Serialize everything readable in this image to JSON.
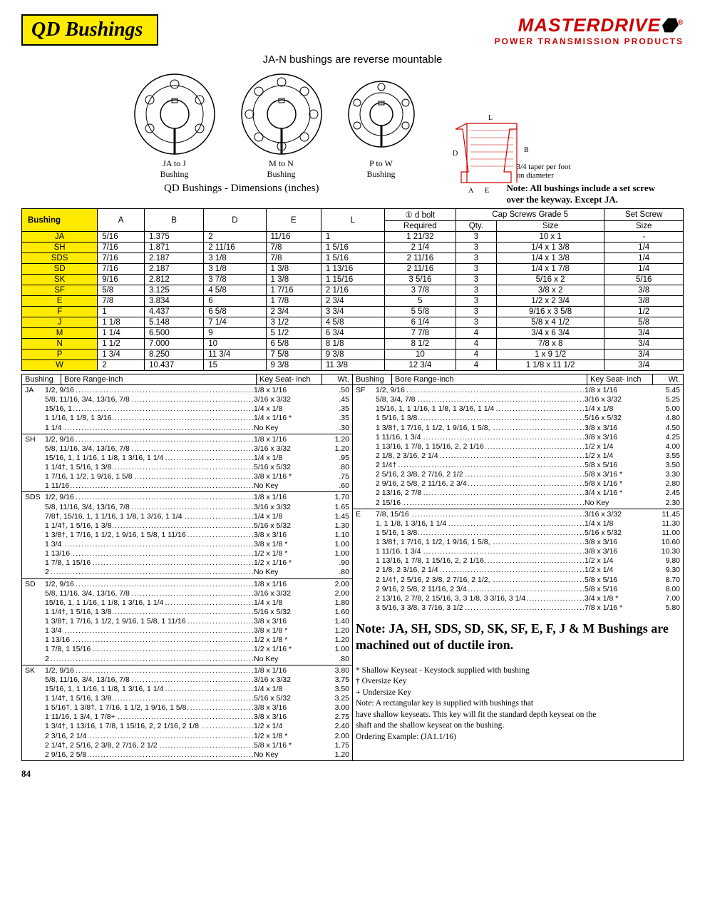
{
  "header": {
    "title": "QD Bushings",
    "brand": "MASTERDRIVE",
    "brand_sub": "POWER TRANSMISSION PRODUCTS"
  },
  "subtitle": "JA-N bushings are reverse mountable",
  "diagram_labels": {
    "a": "JA to J",
    "a2": "Bushing",
    "b": "M to N",
    "b2": "Bushing",
    "c": "P to W",
    "c2": "Bushing",
    "taper": "3/4 taper per foot\non diameter"
  },
  "dim_caption": "QD Bushings - Dimensions (inches)",
  "key_note": "Note: All bushings include a set screw\nover the keyway.  Except JA.",
  "main_table": {
    "header": {
      "bushing": "Bushing",
      "A": "A",
      "B": "B",
      "D": "D",
      "E": "E",
      "L": "L",
      "bolt": "① d bolt",
      "required": "Required",
      "caps": "Cap Screws Grade 5",
      "qty": "Qty.",
      "size": "Size",
      "set": "Set Screw",
      "ssize": "Size"
    },
    "rows": [
      {
        "b": "JA",
        "A": "5/16",
        "B": "1.375",
        "D": "2",
        "E": "11/16",
        "L": "1",
        "R": "1 21/32",
        "Q": "3",
        "S": "10 x 1",
        "SS": "-"
      },
      {
        "b": "SH",
        "A": "7/16",
        "B": "1.871",
        "D": "2 11/16",
        "E": "7/8",
        "L": "1 5/16",
        "R": "2 1/4",
        "Q": "3",
        "S": "1/4 x 1 3/8",
        "SS": "1/4"
      },
      {
        "b": "SDS",
        "A": "7/16",
        "B": "2.187",
        "D": "3 1/8",
        "E": "7/8",
        "L": "1 5/16",
        "R": "2 11/16",
        "Q": "3",
        "S": "1/4 x 1 3/8",
        "SS": "1/4"
      },
      {
        "b": "SD",
        "A": "7/16",
        "B": "2.187",
        "D": "3 1/8",
        "E": "1 3/8",
        "L": "1 13/16",
        "R": "2 11/16",
        "Q": "3",
        "S": "1/4 x 1 7/8",
        "SS": "1/4"
      },
      {
        "b": "SK",
        "A": "9/16",
        "B": "2.812",
        "D": "3 7/8",
        "E": "1 3/8",
        "L": "1 15/16",
        "R": "3 5/16",
        "Q": "3",
        "S": "5/16 x 2",
        "SS": "5/16"
      },
      {
        "b": "SF",
        "A": "5/8",
        "B": "3.125",
        "D": "4 5/8",
        "E": "1 7/16",
        "L": "2 1/16",
        "R": "3 7/8",
        "Q": "3",
        "S": "3/8 x 2",
        "SS": "3/8"
      },
      {
        "b": "E",
        "A": "7/8",
        "B": "3.834",
        "D": "6",
        "E": "1 7/8",
        "L": "2 3/4",
        "R": "5",
        "Q": "3",
        "S": "1/2 x 2 3/4",
        "SS": "3/8"
      },
      {
        "b": "F",
        "A": "1",
        "B": "4.437",
        "D": "6 5/8",
        "E": "2 3/4",
        "L": "3 3/4",
        "R": "5 5/8",
        "Q": "3",
        "S": "9/16 x 3 5/8",
        "SS": "1/2"
      },
      {
        "b": "J",
        "A": "1 1/8",
        "B": "5.148",
        "D": "7 1/4",
        "E": "3 1/2",
        "L": "4 5/8",
        "R": "6 1/4",
        "Q": "3",
        "S": "5/8 x 4 1/2",
        "SS": "5/8"
      },
      {
        "b": "M",
        "A": "1 1/4",
        "B": "6.500",
        "D": "9",
        "E": "5 1/2",
        "L": "6 3/4",
        "R": "7 7/8",
        "Q": "4",
        "S": "3/4 x 6 3/4",
        "SS": "3/4"
      },
      {
        "b": "N",
        "A": "1 1/2",
        "B": "7.000",
        "D": "10",
        "E": "6 5/8",
        "L": "8 1/8",
        "R": "8 1/2",
        "Q": "4",
        "S": "7/8 x 8",
        "SS": "3/4"
      },
      {
        "b": "P",
        "A": "1 3/4",
        "B": "8.250",
        "D": "11 3/4",
        "E": "7 5/8",
        "L": "9 3/8",
        "R": "10",
        "Q": "4",
        "S": "1 x 9 1/2",
        "SS": "3/4"
      },
      {
        "b": "W",
        "A": "2",
        "B": "10.437",
        "D": "15",
        "E": "9 3/8",
        "L": "11 3/8",
        "R": "12 3/4",
        "Q": "4",
        "S": "1 1/8 x 11 1/2",
        "SS": "3/4"
      }
    ]
  },
  "bore_header": {
    "bushing": "Bushing",
    "range": "Bore Range-inch",
    "key": "Key Seat- inch",
    "wt": "Wt."
  },
  "bore_left": [
    {
      "tag": "JA",
      "rows": [
        {
          "r": "1/2, 9/16",
          "k": "1/8  x  1/16",
          "w": ".50"
        },
        {
          "r": "5/8, 11/16, 3/4, 13/16, 7/8",
          "k": "3/16  x  3/32",
          "w": ".45"
        },
        {
          "r": "15/16, 1",
          "k": "1/4  x   1/8",
          "w": ".35"
        },
        {
          "r": "1 1/16, 1 1/8, 1 3/16",
          "k": "1/4  x  1/16 *",
          "w": ".35"
        },
        {
          "r": "1 1/4",
          "k": "No Key",
          "w": ".30"
        }
      ]
    },
    {
      "tag": "SH",
      "rows": [
        {
          "r": "1/2, 9/16",
          "k": "1/8  x  1/16",
          "w": "1.20"
        },
        {
          "r": "5/8, 11/16, 3/4, 13/16, 7/8",
          "k": "3/16  x  3/32",
          "w": "1.20"
        },
        {
          "r": "15/16, 1, 1 1/16, 1 1/8, 1 3/16, 1 1/4",
          "k": "1/4  x   1/8",
          "w": ".95"
        },
        {
          "r": "1 1/4†, 1 5/16, 1 3/8",
          "k": "5/16  x  5/32",
          "w": ".80"
        },
        {
          "r": "1 7/16, 1 1/2, 1 9/16, 1 5/8",
          "k": "3/8  x  1/16 *",
          "w": ".75"
        },
        {
          "r": "1 11/16",
          "k": "No Key",
          "w": ".60"
        }
      ]
    },
    {
      "tag": "SDS",
      "rows": [
        {
          "r": "1/2, 9/16",
          "k": "1/8  x  1/16",
          "w": "1.70"
        },
        {
          "r": "5/8, 11/16, 3/4, 13/16, 7/8",
          "k": "3/16  x  3/32",
          "w": "1.65"
        },
        {
          "r": "7/8†, 15/16, 1, 1 1/16, 1 1/8, 1 3/16, 1 1/4",
          "k": "1/4  x   1/8",
          "w": "1.45"
        },
        {
          "r": "1 1/4†, 1 5/16, 1 3/8",
          "k": "5/16  x  5/32",
          "w": "1.30"
        },
        {
          "r": "1 3/8†, 1 7/16, 1 1/2, 1 9/16, 1 5/8, 1 11/16",
          "k": "3/8  x  3/16",
          "w": "1.10"
        },
        {
          "r": "1 3/4",
          "k": "3/8  x   1/8  *",
          "w": "1.00"
        },
        {
          "r": "1 13/16",
          "k": "1/2  x   1/8  *",
          "w": "1.00"
        },
        {
          "r": "1 7/8, 1 15/16",
          "k": "1/2  x  1/16 *",
          "w": ".90"
        },
        {
          "r": "2",
          "k": "No Key",
          "w": ".80"
        }
      ]
    },
    {
      "tag": "SD",
      "rows": [
        {
          "r": "1/2, 9/16",
          "k": "1/8  x  1/16",
          "w": "2.00"
        },
        {
          "r": "5/8, 11/16, 3/4, 13/16, 7/8",
          "k": "3/16  x  3/32",
          "w": "2.00"
        },
        {
          "r": "15/16, 1, 1 1/16, 1 1/8, 1 3/16, 1 1/4",
          "k": "1/4  x   1/8",
          "w": "1.80"
        },
        {
          "r": "1 1/4†, 1 5/16, 1 3/8",
          "k": "5/16  x  5/32",
          "w": "1.60"
        },
        {
          "r": "1 3/8†, 1 7/16, 1 1/2, 1 9/16, 1 5/8, 1 11/16",
          "k": "3/8  x  3/16",
          "w": "1.40"
        },
        {
          "r": "1 3/4",
          "k": "3/8  x   1/8  *",
          "w": "1.20"
        },
        {
          "r": "1 13/16",
          "k": "1/2  x   1/8  *",
          "w": "1.20"
        },
        {
          "r": "1 7/8, 1 15/16",
          "k": "1/2  x  1/16 *",
          "w": "1.00"
        },
        {
          "r": "2",
          "k": "No Key",
          "w": ".80"
        }
      ]
    },
    {
      "tag": "SK",
      "rows": [
        {
          "r": "1/2, 9/16",
          "k": "1/8  x  1/16",
          "w": "3.80"
        },
        {
          "r": "5/8, 11/16, 3/4, 13/16, 7/8",
          "k": "3/16  x  3/32",
          "w": "3.75"
        },
        {
          "r": "15/16, 1, 1 1/16, 1 1/8, 1 3/16, 1 1/4",
          "k": "1/4  x   1/8",
          "w": "3.50"
        },
        {
          "r": "1 1/4†, 1 5/16, 1 3/8",
          "k": "5/16  x  5/32",
          "w": "3.25"
        },
        {
          "r": "1 5/16†, 1 3/8†, 1 7/16, 1 1/2, 1 9/16, 1 5/8,",
          "k": "3/8  x  3/16",
          "w": "3.00"
        },
        {
          "r": "1 11/16, 1 3/4, 1 7/8+",
          "k": "3/8  x  3/16",
          "w": "2.75"
        },
        {
          "r": "1 3/4†, 1 13/16, 1 7/8, 1 15/16, 2, 2 1/16, 2 1/8",
          "k": "1/2  x   1/4",
          "w": "2.40"
        },
        {
          "r": "2 3/16, 2 1/4",
          "k": "1/2  x   1/8  *",
          "w": "2.00"
        },
        {
          "r": "2 1/4†, 2 5/16, 2 3/8, 2 7/16, 2 1/2",
          "k": "5/8  x  1/16 *",
          "w": "1.75"
        },
        {
          "r": "2 9/16, 2 5/8",
          "k": "No Key",
          "w": "1.20"
        }
      ]
    }
  ],
  "bore_right": [
    {
      "tag": "SF",
      "rows": [
        {
          "r": "1/2, 9/16",
          "k": "1/8  x  1/16",
          "w": "5.45"
        },
        {
          "r": "5/8, 3/4, 7/8",
          "k": "3/16  x  3/32",
          "w": "5.25"
        },
        {
          "r": "15/16, 1, 1 1/16, 1 1/8, 1 3/16, 1 1/4",
          "k": "1/4  x   1/8",
          "w": "5.00"
        },
        {
          "r": "1 5/16, 1 3/8",
          "k": "5/16  x  5/32",
          "w": "4.80"
        },
        {
          "r": "1 3/8†, 1 7/16, 1 1/2, 1 9/16, 1 5/8,",
          "k": "3/8  x  3/16",
          "w": "4.50"
        },
        {
          "r": "1 11/16, 1 3/4",
          "k": "3/8  x  3/16",
          "w": "4.25"
        },
        {
          "r": "1 13/16, 1 7/8, 1 15/16, 2, 2 1/16",
          "k": "1/2  x   1/4",
          "w": "4.00"
        },
        {
          "r": "2 1/8, 2 3/16, 2 1/4",
          "k": "1/2  x   1/4",
          "w": "3.55"
        },
        {
          "r": "2 1/4†",
          "k": "5/8  x  5/16",
          "w": "3.50"
        },
        {
          "r": "2 5/16, 2 3/8, 2 7/16, 2 1/2",
          "k": "5/8  x  3/16 *",
          "w": "3.30"
        },
        {
          "r": "2 9/16, 2 5/8, 2 11/16, 2 3/4",
          "k": "5/8  x  1/16 *",
          "w": "2.80"
        },
        {
          "r": "2 13/16, 2 7/8",
          "k": "3/4  x  1/16 *",
          "w": "2.45"
        },
        {
          "r": "2 15/16",
          "k": "No Key",
          "w": "2.30"
        }
      ]
    },
    {
      "tag": "E",
      "rows": [
        {
          "r": "7/8, 15/16",
          "k": "3/16  x  3/32",
          "w": "11.45"
        },
        {
          "r": "1, 1 1/8, 1 3/16, 1 1/4",
          "k": "1/4  x   1/8",
          "w": "11.30"
        },
        {
          "r": "1 5/16, 1 3/8",
          "k": "5/16  x  5/32",
          "w": "11.00"
        },
        {
          "r": "1 3/8†, 1 7/16, 1 1/2, 1 9/16, 1 5/8,",
          "k": "3/8  x  3/16",
          "w": "10.60"
        },
        {
          "r": "1 11/16, 1 3/4",
          "k": "3/8  x  3/16",
          "w": "10.30"
        },
        {
          "r": "1 13/16, 1 7/8, 1 15/16, 2, 2 1/16,",
          "k": "1/2  x   1/4",
          "w": "9.80"
        },
        {
          "r": "2 1/8, 2 3/16, 2 1/4",
          "k": "1/2  x   1/4",
          "w": "9.30"
        },
        {
          "r": "2 1/4†, 2 5/16, 2 3/8, 2 7/16, 2 1/2,",
          "k": "5/8  x  5/16",
          "w": "8.70"
        },
        {
          "r": "2 9/16, 2 5/8, 2 11/16, 2 3/4",
          "k": "5/8  x  5/16",
          "w": "8.00"
        },
        {
          "r": "2 13/16, 2 7/8, 2 15/16, 3, 3 1/8, 3 3/16, 3 1/4",
          "k": "3/4  x   1/8  *",
          "w": "7.00"
        },
        {
          "r": "3 5/16, 3 3/8, 3 7/16, 3 1/2",
          "k": "7/8  x  1/16 *",
          "w": "5.80"
        }
      ]
    }
  ],
  "big_note": "Note: JA, SH, SDS, SD, SK, SF, E, F, J & M Bushings are machined out of ductile iron.",
  "footnotes": [
    "*  Shallow Keyseat - Keystock supplied with bushing",
    "†  Oversize Key",
    "+ Undersize Key",
    "Note:     A rectangular key is supplied with bushings that",
    "have shallow keyseats.  This key will fit the standard depth keyseat on the",
    "shaft and the shallow keyseat on  the bushing.",
    "Ordering Example:   (JA1.1/16)"
  ],
  "pagenum": "84"
}
